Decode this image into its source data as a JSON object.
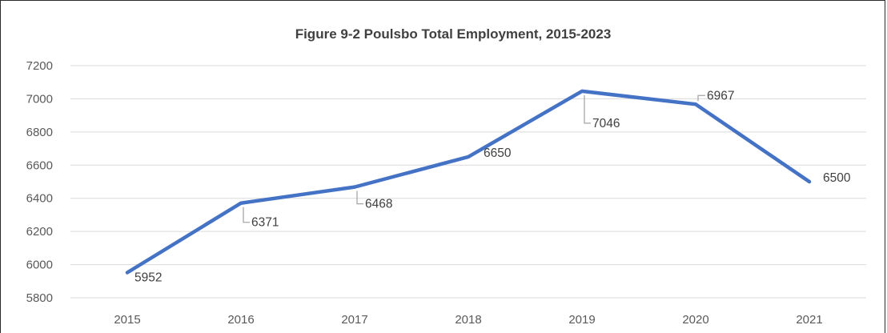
{
  "chart_data": {
    "type": "line",
    "title": "Figure 9-2 Poulsbo Total Employment, 2015-2023",
    "xlabel": "",
    "ylabel": "",
    "categories": [
      "2015",
      "2016",
      "2017",
      "2018",
      "2019",
      "2020",
      "2021"
    ],
    "series": [
      {
        "values": [
          5952,
          6371,
          6468,
          6650,
          7046,
          6967,
          6500
        ]
      }
    ],
    "data_labels": [
      "5952",
      "6371",
      "6468",
      "6650",
      "7046",
      "6967",
      "6500"
    ],
    "ylim": [
      5800,
      7200
    ],
    "yticks": [
      "5800",
      "6000",
      "6200",
      "6400",
      "6600",
      "6800",
      "7000",
      "7200"
    ],
    "grid": "horizontal",
    "legend": "none",
    "line_color": "#4472C4",
    "grid_color": "#d9d9d9",
    "leader_color": "#a6a6a6"
  }
}
